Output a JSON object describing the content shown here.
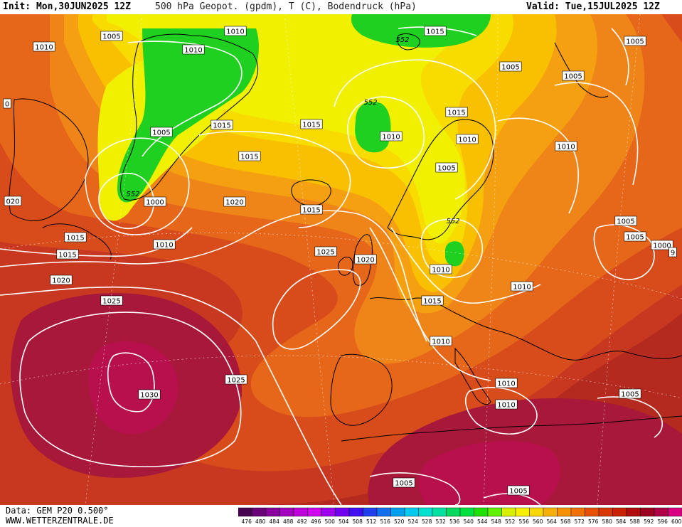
{
  "header": {
    "init": "Init: Mon,30JUN2025 12Z",
    "title": "500 hPa Geopot. (gpdm), T (C), Bodendruck (hPa)",
    "valid": "Valid: Tue,15JUL2025 12Z"
  },
  "footer": {
    "data_source": "Data: GEM P20 0.500°",
    "website": "WWW.WETTERZENTRALE.DE"
  },
  "colorbar": {
    "labels": [
      "476",
      "480",
      "484",
      "488",
      "492",
      "496",
      "500",
      "504",
      "508",
      "512",
      "516",
      "520",
      "524",
      "528",
      "532",
      "536",
      "540",
      "544",
      "548",
      "552",
      "556",
      "560",
      "564",
      "568",
      "572",
      "576",
      "580",
      "584",
      "588",
      "592",
      "596",
      "600"
    ],
    "colors": [
      "#4a0050",
      "#6a0078",
      "#8a00a0",
      "#a400c0",
      "#c000d8",
      "#d000f0",
      "#a000f0",
      "#7000f0",
      "#4010f0",
      "#2040f0",
      "#1070f0",
      "#00a0f0",
      "#00c8f0",
      "#00e0d0",
      "#00e0a0",
      "#00d860",
      "#00e040",
      "#20e000",
      "#60f000",
      "#d8f000",
      "#f8f000",
      "#f8d800",
      "#f8b000",
      "#f89000",
      "#f07000",
      "#e85000",
      "#d83800",
      "#c82000",
      "#b00c10",
      "#a00020",
      "#b00048",
      "#d80080"
    ]
  },
  "map": {
    "colors": {
      "c588": "#b42a1e",
      "c584": "#c83820",
      "c580": "#d84c1c",
      "c576": "#e6661a",
      "c572": "#ef8418",
      "c568": "#f5a010",
      "c564": "#f8c000",
      "c560": "#f8dc00",
      "c556": "#f0f000",
      "c552": "#20d020",
      "c592": "#a8183a",
      "c596": "#b8104c",
      "isobar": "#ffffff",
      "coast": "#000000"
    },
    "isobar_labels": [
      {
        "text": "1005"
      },
      {
        "text": "1010"
      },
      {
        "text": "1010"
      },
      {
        "text": "1010"
      },
      {
        "text": "1015"
      },
      {
        "text": "1005"
      },
      {
        "text": "1005"
      },
      {
        "text": "1005"
      },
      {
        "text": "1015"
      },
      {
        "text": "1015"
      },
      {
        "text": "1015"
      },
      {
        "text": "1010"
      },
      {
        "text": "1015"
      },
      {
        "text": "1010"
      },
      {
        "text": "1005"
      },
      {
        "text": "1010"
      },
      {
        "text": "020"
      },
      {
        "text": "1000"
      },
      {
        "text": "1020"
      },
      {
        "text": "1015"
      },
      {
        "text": "1015"
      },
      {
        "text": "1015"
      },
      {
        "text": "1010"
      },
      {
        "text": "1025"
      },
      {
        "text": "1020"
      },
      {
        "text": "1005"
      },
      {
        "text": "1005"
      },
      {
        "text": "1005"
      },
      {
        "text": "1000"
      },
      {
        "text": "1010"
      },
      {
        "text": "1010"
      },
      {
        "text": "1020"
      },
      {
        "text": "1025"
      },
      {
        "text": "1015"
      },
      {
        "text": "1010"
      },
      {
        "text": "1030"
      },
      {
        "text": "1025"
      },
      {
        "text": "1010"
      },
      {
        "text": "1010"
      },
      {
        "text": "1005"
      },
      {
        "text": "1005"
      },
      {
        "text": "1005"
      },
      {
        "text": "0"
      },
      {
        "text": "9"
      }
    ],
    "geopot_labels": [
      {
        "text": "552"
      },
      {
        "text": "552"
      },
      {
        "text": "552"
      },
      {
        "text": "552"
      }
    ]
  }
}
